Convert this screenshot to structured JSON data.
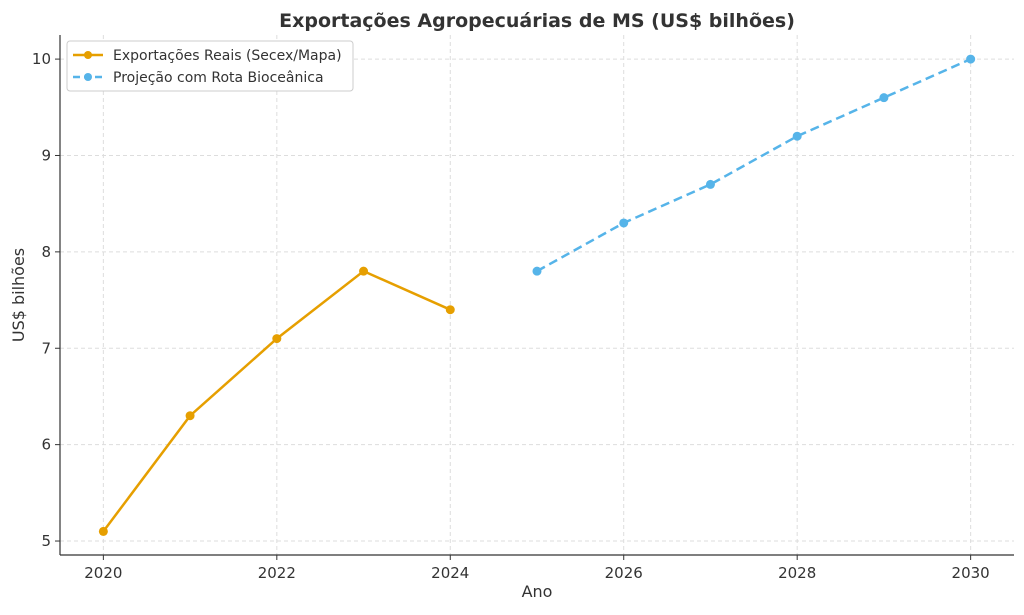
{
  "chart_data": {
    "type": "line",
    "title": "Exportações Agropecuárias de MS (US$ bilhões)",
    "xlabel": "Ano",
    "ylabel": "US$ bilhões",
    "xlim": [
      2019.5,
      2030.5
    ],
    "ylim": [
      4.855,
      10.25
    ],
    "xticks": [
      2020,
      2022,
      2024,
      2026,
      2028,
      2030
    ],
    "yticks": [
      5,
      6,
      7,
      8,
      9,
      10
    ],
    "grid": true,
    "legend_position": "top-left",
    "series": [
      {
        "name": "Exportações Reais (Secex/Mapa)",
        "color": "#E69F00",
        "dashed": false,
        "x": [
          2020,
          2021,
          2022,
          2023,
          2024
        ],
        "y": [
          5.1,
          6.3,
          7.1,
          7.8,
          7.4
        ]
      },
      {
        "name": "Projeção com Rota Bioceânica",
        "color": "#56B4E9",
        "dashed": true,
        "x": [
          2025,
          2026,
          2027,
          2028,
          2029,
          2030
        ],
        "y": [
          7.8,
          8.3,
          8.7,
          9.2,
          9.6,
          10.0
        ]
      }
    ]
  }
}
